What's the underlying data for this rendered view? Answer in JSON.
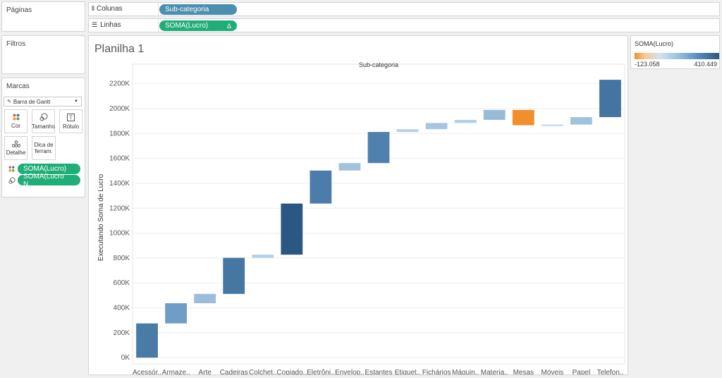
{
  "pages": {
    "title": "Páginas"
  },
  "filters": {
    "title": "Filtros"
  },
  "marks": {
    "title": "Marcas",
    "type_label": "Barra de Gantt",
    "buttons": {
      "color": "Cor",
      "size": "Tamanho",
      "label": "Rótulo",
      "detail": "Detalhe",
      "tooltip_line1": "Dica de",
      "tooltip_line2": "ferram."
    },
    "pills": [
      "SOMA(Lucro)",
      "SOMA(Lucro N..."
    ]
  },
  "shelves": {
    "columns_label": "Colunas",
    "columns_pill": "Sub-categoria",
    "rows_label": "Linhas",
    "rows_pill": "SOMA(Lucro)",
    "rows_pill_icon": "Δ"
  },
  "sheet": {
    "title": "Planilha 1"
  },
  "legend": {
    "title": "SOMA(Lucro)",
    "min_label": "-123.058",
    "max_label": "410.449"
  },
  "colors": {
    "blue": "#4a8eb0",
    "green": "#1fae77",
    "orange": "#f28e2b",
    "dark_blue": "#2a5783"
  },
  "chart_data": {
    "type": "gantt-waterfall",
    "title": "Sub-categoria",
    "xlabel": "",
    "ylabel": "Executando Soma de Lucro",
    "ylim": [
      -50000,
      2300000
    ],
    "yticks": [
      0,
      200000,
      400000,
      600000,
      800000,
      1000000,
      1200000,
      1400000,
      1600000,
      1800000,
      2000000,
      2200000
    ],
    "ytick_labels": [
      "0K",
      "200K",
      "400K",
      "600K",
      "800K",
      "1000K",
      "1200K",
      "1400K",
      "1600K",
      "1800K",
      "2000K",
      "2200K"
    ],
    "grid": true,
    "categories": [
      "Acessór..",
      "Armaze..",
      "Arte",
      "Cadeiras",
      "Colchet..",
      "Copiado..",
      "Eletrôni..",
      "Envelop..",
      "Estantes",
      "Etiquet..",
      "Fichários",
      "Máquin..",
      "Materia..",
      "Mesas",
      "Móveis",
      "Papel",
      "Telefon.."
    ],
    "values": [
      275000,
      162000,
      75000,
      290000,
      25000,
      410449,
      265000,
      60000,
      250000,
      22000,
      50000,
      25000,
      80000,
      -123058,
      5000,
      60000,
      300000
    ],
    "color_range": [
      -123058,
      410449
    ]
  }
}
